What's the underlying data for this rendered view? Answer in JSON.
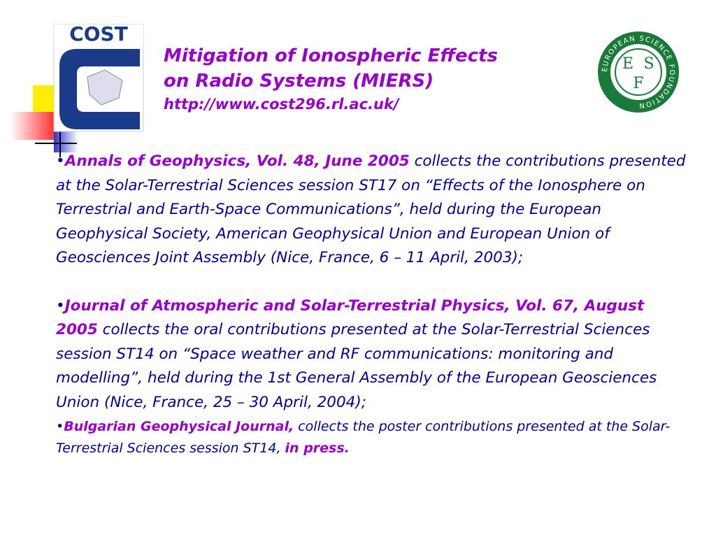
{
  "header": {
    "title_lines": [
      "Mitigation of Ionospheric Effects",
      "on Radio Systems (MIERS)"
    ],
    "url": "http://www.cost296.rl.ac.uk/"
  },
  "logos": {
    "cost": "COST",
    "esf_letters": [
      "E",
      "S",
      "F"
    ],
    "esf_ring": "EUROPEAN SCIENCE FOUNDATION"
  },
  "items": [
    {
      "highlight": "Annals of Geophysics, Vol. 48, June 2005",
      "text": " collects the contributions presented at the Solar-Terrestrial Sciences session ST17 on “Effects of the Ionosphere on Terrestrial and Earth-Space Communications”, held during the European Geophysical Society, American Geophysical Union and European Union of Geosciences Joint Assembly (Nice, France, 6 – 11 April, 2003);"
    },
    {
      "highlight": "Journal of Atmospheric and Solar-Terrestrial Physics, Vol. 67, August 2005",
      "text": " collects the oral contributions presented at the Solar-Terrestrial Sciences session ST14 on “Space weather and RF communications: monitoring and modelling”, held during the 1st General Assembly of the European Geosciences Union (Nice, France, 25 – 30 April, 2004);"
    },
    {
      "highlight": "Bulgarian Geophysical Journal,",
      "text": " collects the poster contributions presented at the Solar-Terrestrial Sciences session ST14, ",
      "highlight_end": "in press."
    }
  ]
}
